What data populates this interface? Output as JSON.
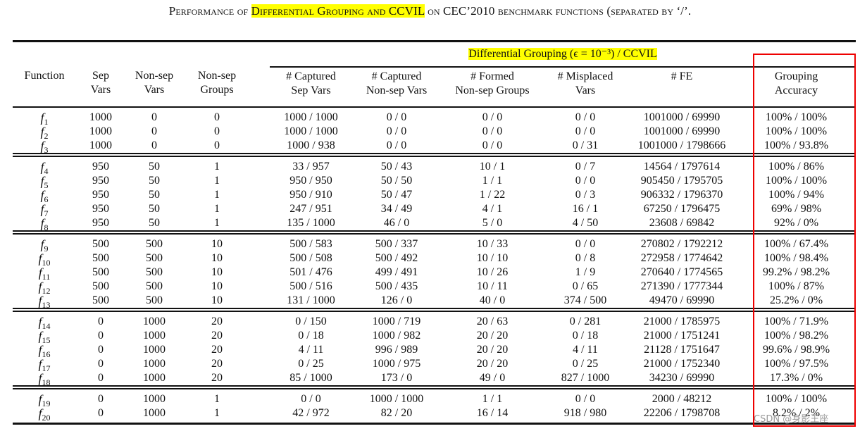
{
  "title": {
    "pre": "Performance of ",
    "highlight": "Differential Grouping and CCVIL",
    "post": " on CEC’2010 benchmark functions (separated by ‘/’."
  },
  "group_header": "Differential Grouping (ϵ = 10⁻³) / CCVIL",
  "headers": [
    [
      "Function",
      ""
    ],
    [
      "Sep",
      "Vars"
    ],
    [
      "Non-sep",
      "Vars"
    ],
    [
      "Non-sep",
      "Groups"
    ],
    [
      "# Captured",
      "Sep Vars"
    ],
    [
      "# Captured",
      "Non-sep Vars"
    ],
    [
      "# Formed",
      "Non-sep Groups"
    ],
    [
      "# Misplaced",
      "Vars"
    ],
    [
      "# FE",
      ""
    ],
    [
      "Grouping",
      "Accuracy"
    ]
  ],
  "row_groups": [
    [
      [
        "f1",
        "1000",
        "0",
        "0",
        "1000 / 1000",
        "0 / 0",
        "0 / 0",
        "0 / 0",
        "1001000 / 69990",
        "100% / 100%"
      ],
      [
        "f2",
        "1000",
        "0",
        "0",
        "1000 / 1000",
        "0 / 0",
        "0 / 0",
        "0 / 0",
        "1001000 / 69990",
        "100% / 100%"
      ],
      [
        "f3",
        "1000",
        "0",
        "0",
        "1000 / 938",
        "0 / 0",
        "0 / 0",
        "0 / 31",
        "1001000 / 1798666",
        "100% / 93.8%"
      ]
    ],
    [
      [
        "f4",
        "950",
        "50",
        "1",
        "33 / 957",
        "50 / 43",
        "10 / 1",
        "0 / 7",
        "14564 / 1797614",
        "100% / 86%"
      ],
      [
        "f5",
        "950",
        "50",
        "1",
        "950 / 950",
        "50 / 50",
        "1 / 1",
        "0 / 0",
        "905450 / 1795705",
        "100% / 100%"
      ],
      [
        "f6",
        "950",
        "50",
        "1",
        "950 / 910",
        "50 / 47",
        "1 / 22",
        "0 / 3",
        "906332 / 1796370",
        "100% / 94%"
      ],
      [
        "f7",
        "950",
        "50",
        "1",
        "247 / 951",
        "34 / 49",
        "4 / 1",
        "16 / 1",
        "67250 / 1796475",
        "69% / 98%"
      ],
      [
        "f8",
        "950",
        "50",
        "1",
        "135 / 1000",
        "46 / 0",
        "5 / 0",
        "4 / 50",
        "23608 / 69842",
        "92% / 0%"
      ]
    ],
    [
      [
        "f9",
        "500",
        "500",
        "10",
        "500 / 583",
        "500 / 337",
        "10 / 33",
        "0 / 0",
        "270802 / 1792212",
        "100% / 67.4%"
      ],
      [
        "f10",
        "500",
        "500",
        "10",
        "500 / 508",
        "500 / 492",
        "10 / 10",
        "0 / 8",
        "272958 / 1774642",
        "100% / 98.4%"
      ],
      [
        "f11",
        "500",
        "500",
        "10",
        "501 / 476",
        "499 / 491",
        "10 / 26",
        "1 / 9",
        "270640 / 1774565",
        "99.2% / 98.2%"
      ],
      [
        "f12",
        "500",
        "500",
        "10",
        "500 / 516",
        "500 / 435",
        "10 / 11",
        "0 / 65",
        "271390 / 1777344",
        "100% / 87%"
      ],
      [
        "f13",
        "500",
        "500",
        "10",
        "131 / 1000",
        "126 / 0",
        "40 / 0",
        "374 / 500",
        "49470 / 69990",
        "25.2% / 0%"
      ]
    ],
    [
      [
        "f14",
        "0",
        "1000",
        "20",
        "0 / 150",
        "1000 / 719",
        "20 / 63",
        "0 / 281",
        "21000 / 1785975",
        "100% / 71.9%"
      ],
      [
        "f15",
        "0",
        "1000",
        "20",
        "0 / 18",
        "1000 / 982",
        "20 / 20",
        "0 / 18",
        "21000 / 1751241",
        "100% / 98.2%"
      ],
      [
        "f16",
        "0",
        "1000",
        "20",
        "4 / 11",
        "996 / 989",
        "20 / 20",
        "4 / 11",
        "21128 / 1751647",
        "99.6% / 98.9%"
      ],
      [
        "f17",
        "0",
        "1000",
        "20",
        "0 / 25",
        "1000 / 975",
        "20 / 20",
        "0 / 25",
        "21000 / 1752340",
        "100% / 97.5%"
      ],
      [
        "f18",
        "0",
        "1000",
        "20",
        "85 / 1000",
        "173 / 0",
        "49 / 0",
        "827 / 1000",
        "34230 / 69990",
        "17.3% / 0%"
      ]
    ],
    [
      [
        "f19",
        "0",
        "1000",
        "1",
        "0 / 0",
        "1000 / 1000",
        "1 / 1",
        "0 / 0",
        "2000 / 48212",
        "100% / 100%"
      ],
      [
        "f20",
        "0",
        "1000",
        "1",
        "42 / 972",
        "82 / 20",
        "16 / 14",
        "918 / 980",
        "22206 / 1798708",
        "8.2% / 2%"
      ]
    ]
  ],
  "highlight_color": "#ffff00",
  "annotation_box_color": "#ee0000",
  "watermark": "CSDN @身影王座"
}
